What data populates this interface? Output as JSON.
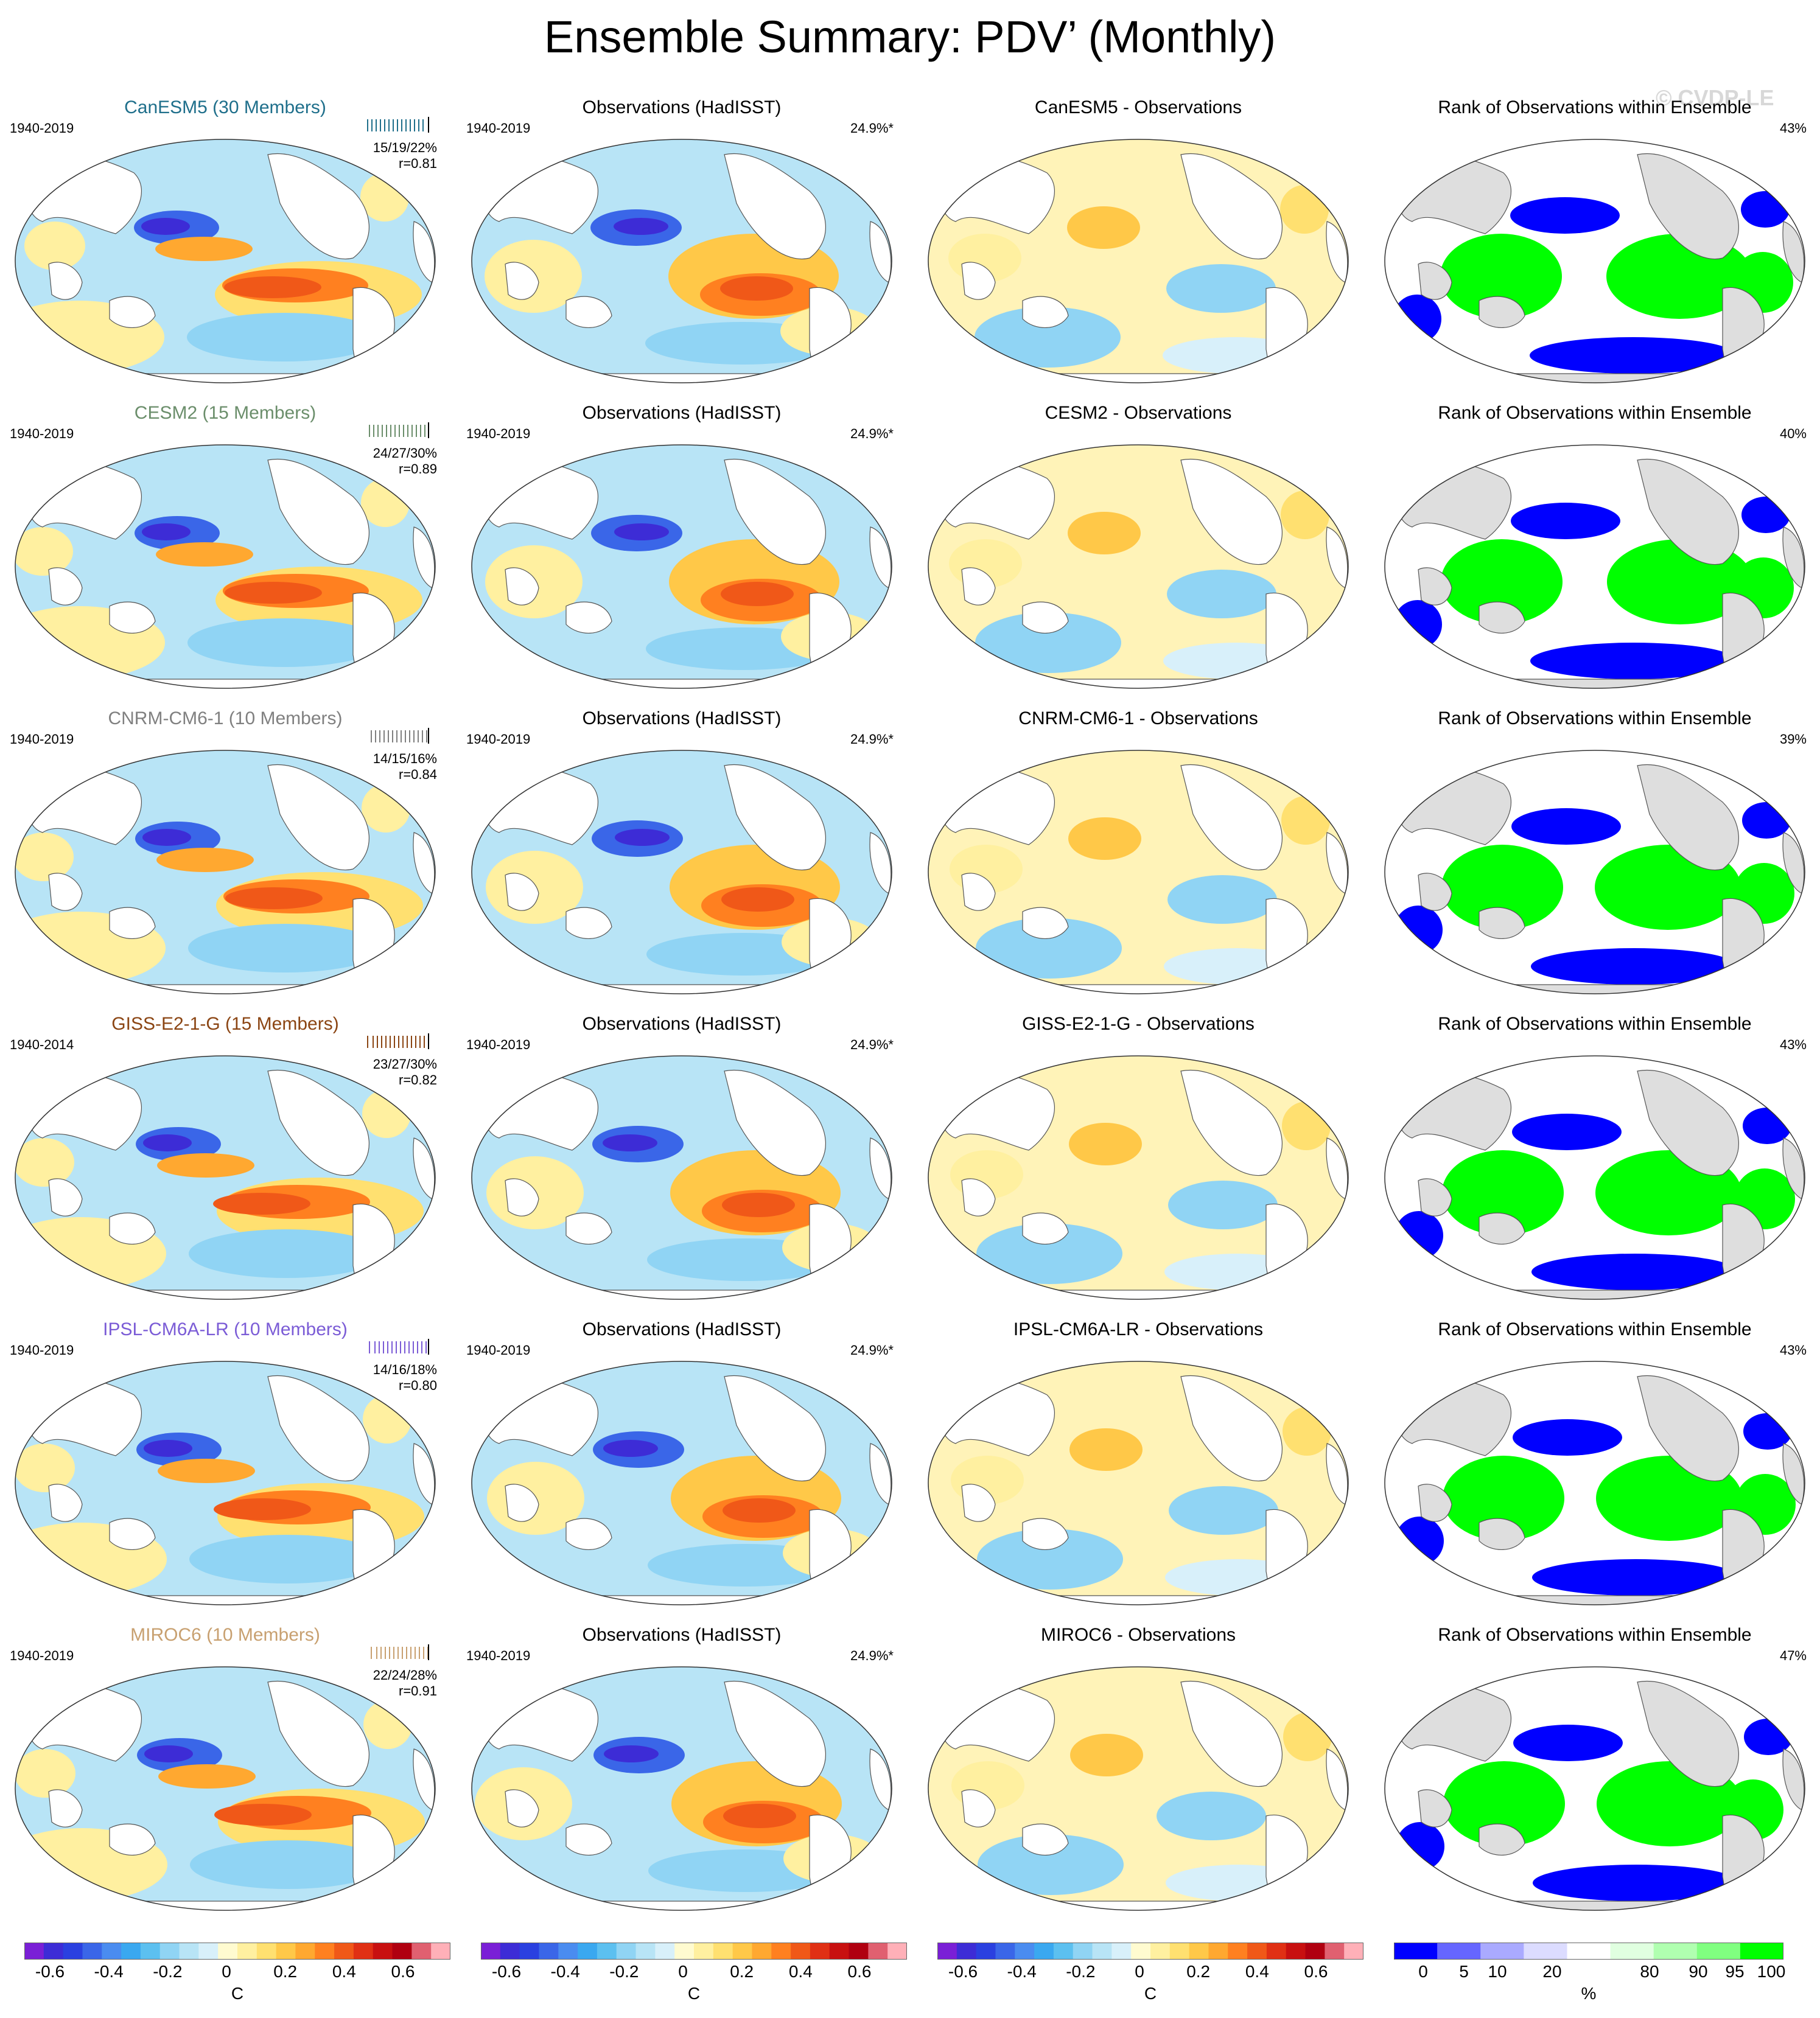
{
  "page": {
    "title": "Ensemble Summary: PDV’ (Monthly)",
    "watermark": "© CVDP-LE"
  },
  "rows": [
    {
      "model": "CanESM5 (30 Members)",
      "model_color": "#1f6f8b",
      "period": "1940-2019",
      "stats": "15/19/22%",
      "corr": "r=0.81",
      "obs_title": "Observations (HadISST)",
      "obs_period": "1940-2019",
      "obs_pct": "24.9%*",
      "diff_title": "CanESM5 - Observations",
      "rank_title": "Rank of Observations within Ensemble",
      "rank_pct": "43%"
    },
    {
      "model": "CESM2 (15 Members)",
      "model_color": "#6b8e6b",
      "period": "1940-2019",
      "stats": "24/27/30%",
      "corr": "r=0.89",
      "obs_title": "Observations (HadISST)",
      "obs_period": "1940-2019",
      "obs_pct": "24.9%*",
      "diff_title": "CESM2 - Observations",
      "rank_title": "Rank of Observations within Ensemble",
      "rank_pct": "40%"
    },
    {
      "model": "CNRM-CM6-1 (10 Members)",
      "model_color": "#808080",
      "period": "1940-2019",
      "stats": "14/15/16%",
      "corr": "r=0.84",
      "obs_title": "Observations (HadISST)",
      "obs_period": "1940-2019",
      "obs_pct": "24.9%*",
      "diff_title": "CNRM-CM6-1 - Observations",
      "rank_title": "Rank of Observations within Ensemble",
      "rank_pct": "39%"
    },
    {
      "model": "GISS-E2-1-G (15 Members)",
      "model_color": "#8b4513",
      "period": "1940-2014",
      "stats": "23/27/30%",
      "corr": "r=0.82",
      "obs_title": "Observations (HadISST)",
      "obs_period": "1940-2019",
      "obs_pct": "24.9%*",
      "diff_title": "GISS-E2-1-G - Observations",
      "rank_title": "Rank of Observations within Ensemble",
      "rank_pct": "43%"
    },
    {
      "model": "IPSL-CM6A-LR (10 Members)",
      "model_color": "#7b5cd6",
      "period": "1940-2019",
      "stats": "14/16/18%",
      "corr": "r=0.80",
      "obs_title": "Observations (HadISST)",
      "obs_period": "1940-2019",
      "obs_pct": "24.9%*",
      "diff_title": "IPSL-CM6A-LR - Observations",
      "rank_title": "Rank of Observations within Ensemble",
      "rank_pct": "43%"
    },
    {
      "model": "MIROC6 (10 Members)",
      "model_color": "#c8a070",
      "period": "1940-2019",
      "stats": "22/24/28%",
      "corr": "r=0.91",
      "obs_title": "Observations (HadISST)",
      "obs_period": "1940-2019",
      "obs_pct": "24.9%*",
      "diff_title": "MIROC6 - Observations",
      "rank_title": "Rank of Observations within Ensemble",
      "rank_pct": "47%"
    }
  ],
  "colorbars": {
    "temp": {
      "colors": [
        "#7a1fd6",
        "#3d2cd6",
        "#2a40e0",
        "#3a66e8",
        "#4a8cf0",
        "#3aa8f0",
        "#5cc0f0",
        "#90d4f4",
        "#b8e4f6",
        "#d8f0fa",
        "#fffbd0",
        "#fff0a0",
        "#ffe070",
        "#ffc848",
        "#ffa830",
        "#ff8020",
        "#f05818",
        "#e03014",
        "#c81010",
        "#b00010",
        "#e06070",
        "#ffb0b8"
      ],
      "tick_labels": [
        "-0.6",
        "-0.4",
        "-0.2",
        "0",
        "0.2",
        "0.4",
        "0.6"
      ],
      "tick_values": [
        -0.6,
        -0.4,
        -0.2,
        0,
        0.2,
        0.4,
        0.6
      ],
      "unit": "C"
    },
    "rank": {
      "colors": [
        "#0000ff",
        "#6666ff",
        "#aaaaff",
        "#dcdcff",
        "#ffffff",
        "#e0ffe0",
        "#b0ffb0",
        "#80ff80",
        "#00ff00"
      ],
      "tick_labels": [
        "0",
        "5",
        "10",
        "20",
        "80",
        "90",
        "95",
        "100"
      ],
      "unit": "%"
    }
  }
}
